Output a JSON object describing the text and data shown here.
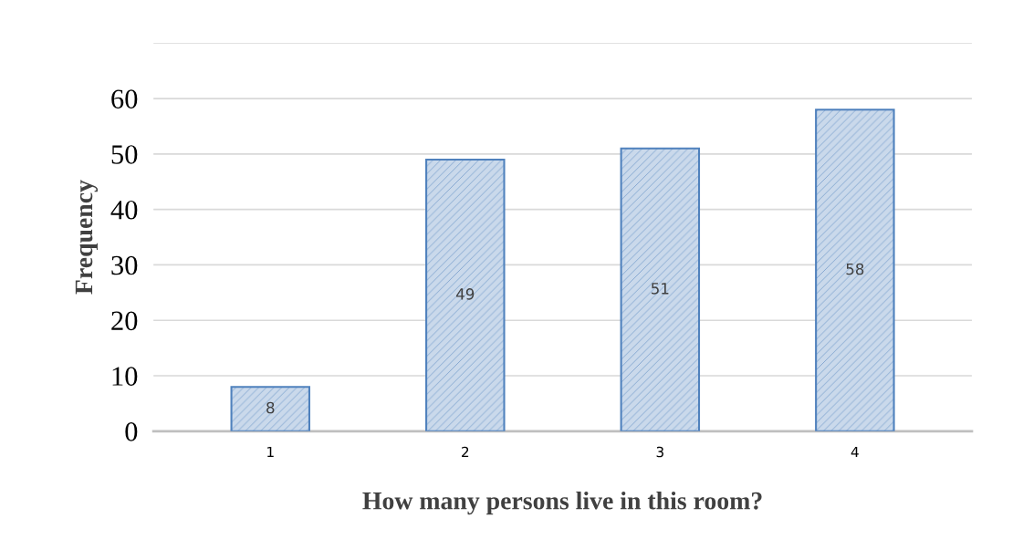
{
  "chart_data": {
    "type": "bar",
    "xlabel": "How many persons live in this room?",
    "ylabel": "Frequency",
    "categories": [
      "1",
      "2",
      "3",
      "4"
    ],
    "values": [
      8,
      49,
      51,
      58
    ],
    "color": "#4f81bd",
    "ylim": [
      0,
      70
    ],
    "yticks": [
      0,
      10,
      20,
      30,
      40,
      50,
      60,
      {
        "value": 70,
        "label": null
      }
    ],
    "grid": "y",
    "data_labels": true,
    "legend": false
  }
}
